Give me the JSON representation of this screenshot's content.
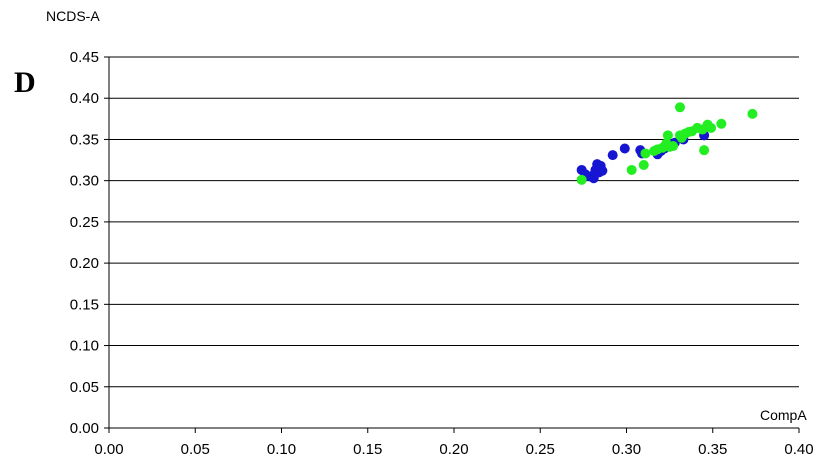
{
  "chart_data": {
    "type": "scatter",
    "panel_label": "D",
    "title": "",
    "xlabel": "CompA",
    "ylabel": "NCDS-A",
    "xlim": [
      0.0,
      0.4
    ],
    "ylim": [
      0.0,
      0.45
    ],
    "xticks": [
      "0.00",
      "0.05",
      "0.10",
      "0.15",
      "0.20",
      "0.25",
      "0.30",
      "0.35",
      "0.40"
    ],
    "yticks": [
      "0.00",
      "0.05",
      "0.10",
      "0.15",
      "0.20",
      "0.25",
      "0.30",
      "0.35",
      "0.40",
      "0.45"
    ],
    "grid": "horizontal",
    "legend": "none",
    "series": [
      {
        "color": "#1515d2",
        "points": [
          [
            0.274,
            0.313
          ],
          [
            0.276,
            0.308
          ],
          [
            0.279,
            0.305
          ],
          [
            0.281,
            0.307
          ],
          [
            0.282,
            0.313
          ],
          [
            0.283,
            0.32
          ],
          [
            0.285,
            0.318
          ],
          [
            0.284,
            0.31
          ],
          [
            0.286,
            0.312
          ],
          [
            0.281,
            0.303
          ],
          [
            0.292,
            0.331
          ],
          [
            0.299,
            0.339
          ],
          [
            0.308,
            0.337
          ],
          [
            0.309,
            0.333
          ],
          [
            0.318,
            0.332
          ],
          [
            0.32,
            0.336
          ],
          [
            0.322,
            0.339
          ],
          [
            0.326,
            0.343
          ],
          [
            0.328,
            0.346
          ],
          [
            0.333,
            0.35
          ],
          [
            0.345,
            0.355
          ]
        ]
      },
      {
        "color": "#22ee22",
        "points": [
          [
            0.274,
            0.301
          ],
          [
            0.303,
            0.313
          ],
          [
            0.31,
            0.319
          ],
          [
            0.311,
            0.333
          ],
          [
            0.316,
            0.336
          ],
          [
            0.318,
            0.338
          ],
          [
            0.321,
            0.34
          ],
          [
            0.323,
            0.345
          ],
          [
            0.324,
            0.355
          ],
          [
            0.325,
            0.341
          ],
          [
            0.327,
            0.342
          ],
          [
            0.331,
            0.355
          ],
          [
            0.332,
            0.352
          ],
          [
            0.334,
            0.357
          ],
          [
            0.336,
            0.359
          ],
          [
            0.338,
            0.36
          ],
          [
            0.341,
            0.364
          ],
          [
            0.344,
            0.362
          ],
          [
            0.345,
            0.337
          ],
          [
            0.347,
            0.368
          ],
          [
            0.349,
            0.364
          ],
          [
            0.355,
            0.369
          ],
          [
            0.331,
            0.389
          ],
          [
            0.373,
            0.381
          ]
        ]
      }
    ]
  }
}
